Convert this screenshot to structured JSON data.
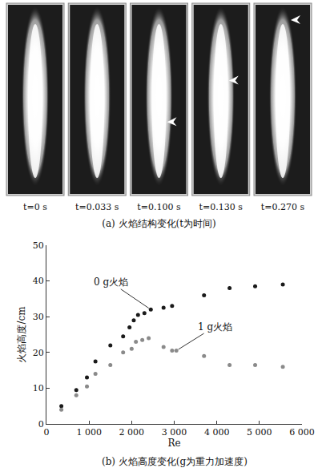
{
  "figure_a": {
    "frames": [
      "t=0 s",
      "t=0.033 s",
      "t=0.100 s",
      "t=0.130 s",
      "t=0.270 s"
    ],
    "caption": "(a) 火焰结构变化(t为时间)"
  },
  "chart_data": {
    "type": "scatter",
    "title": "(b) 火焰高度变化(g为重力加速度)",
    "x_label": "Re",
    "y_label": "火焰高度/cm",
    "xlim": [
      0,
      6000
    ],
    "xticks": [
      0,
      {
        "value": 1000,
        "label": "1 000"
      },
      {
        "value": 2000,
        "label": "2 000"
      },
      {
        "value": 3000,
        "label": "3 000"
      },
      {
        "value": 4000,
        "label": "4 000"
      },
      {
        "value": 5000,
        "label": "5 000"
      },
      {
        "value": 6000,
        "label": "6 000"
      }
    ],
    "ylim": [
      0,
      50
    ],
    "yticks": [
      0,
      10,
      20,
      30,
      40,
      50
    ],
    "grid": false,
    "series": [
      {
        "name": "0 g火焰",
        "color": "#1a1a1a",
        "marker": "circle",
        "x": [
          350,
          700,
          950,
          1150,
          1500,
          1800,
          1950,
          2050,
          2150,
          2300,
          2450,
          2750,
          2950,
          3700,
          4300,
          4900,
          5550
        ],
        "values": [
          5,
          9.5,
          13,
          17.5,
          22,
          24.5,
          27,
          29,
          30.5,
          31,
          32,
          32.5,
          33,
          36,
          38,
          38.5,
          39
        ]
      },
      {
        "name": "1 g火焰",
        "color": "#8a8a8a",
        "marker": "circle",
        "x": [
          350,
          700,
          950,
          1150,
          1500,
          1800,
          2000,
          2100,
          2250,
          2400,
          2750,
          2950,
          3050,
          3700,
          4300,
          4900,
          5550
        ],
        "values": [
          4,
          8,
          10.5,
          14,
          16.5,
          20,
          21,
          23,
          23.5,
          24,
          21.5,
          20.5,
          20.5,
          19,
          16.5,
          16.5,
          16
        ]
      }
    ]
  }
}
